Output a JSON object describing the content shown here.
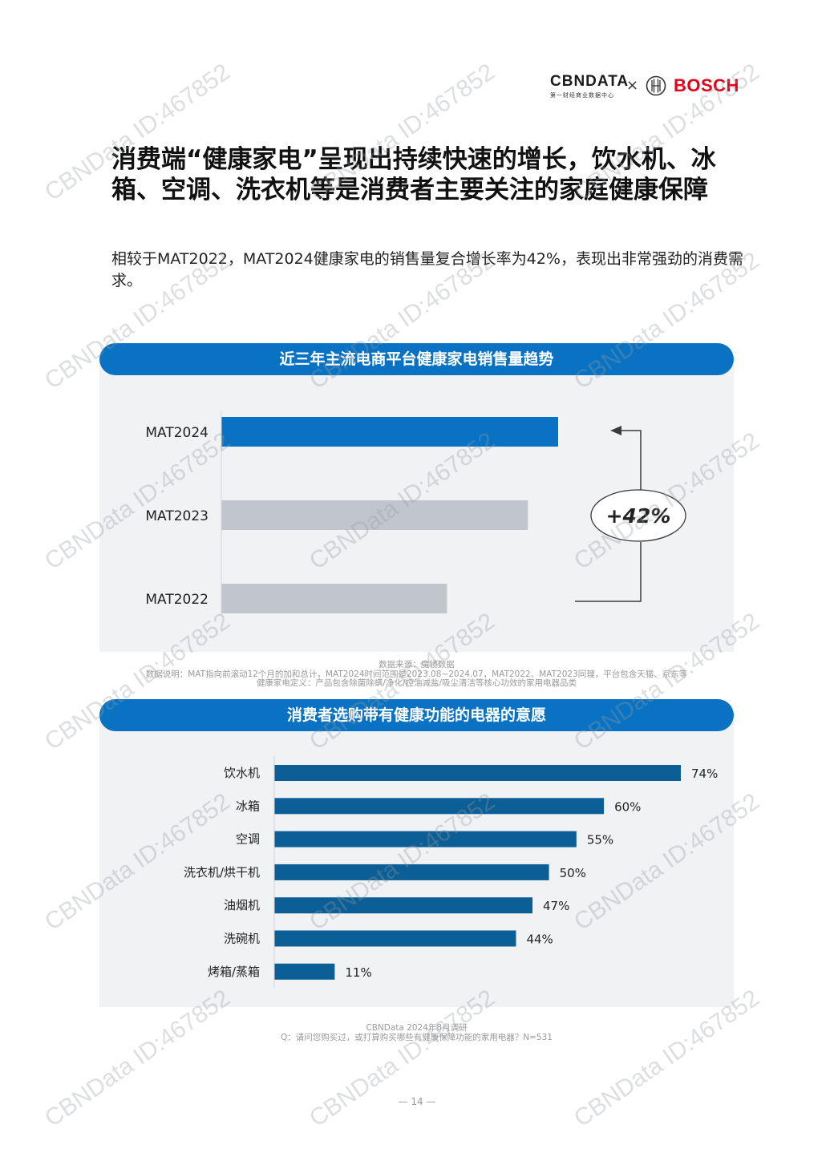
{
  "header": {
    "cbn_logo_text": "CBNDATA",
    "cbn_logo_sub": "第一财经商业数据中心",
    "cross": "×",
    "bosch_logo_text": "BOSCH"
  },
  "title": "消费端“健康家电”呈现出持续快速的增长，饮水机、冰箱、空调、洗衣机等是消费者主要关注的家庭健康保障",
  "subtitle": "相较于MAT2022，MAT2024健康家电的销售量复合增长率为42%，表现出非常强劲的消费需求。",
  "chart1": {
    "banner": "近三年主流电商平台健康家电销售量趋势",
    "growth_label": "+42%",
    "source_lines": [
      "数据来源：魔镜数据",
      "数据说明：MAT指向前滚动12个月的加和总计，MAT2024时间范围是2023.08~2024.07，MAT2022、MAT2023同理，平台包含天猫、京东等",
      "健康家电定义：产品包含除菌除螨/净化/控油减盐/吸尘清洁等核心功效的家用电器品类"
    ],
    "colors": {
      "highlight": "#0a72c2",
      "other": "#c1c6cc"
    }
  },
  "chart2": {
    "banner": "消费者选购带有健康功能的电器的意愿",
    "source_lines": [
      "CBNData 2024年8月调研",
      "Q：请问您购买过，或打算购买哪些有健康保障功能的家用电器？N=531"
    ],
    "colors": {
      "bar": "#0c5e96"
    }
  },
  "chart_data": [
    {
      "type": "bar",
      "orientation": "horizontal",
      "title": "近三年主流电商平台健康家电销售量趋势",
      "categories": [
        "MAT2024",
        "MAT2023",
        "MAT2022"
      ],
      "values": [
        100,
        91,
        67
      ],
      "annotation": "+42%",
      "value_labels_shown": false
    },
    {
      "type": "bar",
      "orientation": "horizontal",
      "title": "消费者选购带有健康功能的电器的意愿",
      "categories": [
        "饮水机",
        "冰箱",
        "空调",
        "洗衣机/烘干机",
        "油烟机",
        "洗碗机",
        "烤箱/蒸箱"
      ],
      "values": [
        74,
        60,
        55,
        50,
        47,
        44,
        11
      ],
      "value_labels": [
        "74%",
        "60%",
        "55%",
        "50%",
        "47%",
        "44%",
        "11%"
      ]
    }
  ],
  "page_number": "— 14 —",
  "watermark_text": "CBNData ID:467852"
}
